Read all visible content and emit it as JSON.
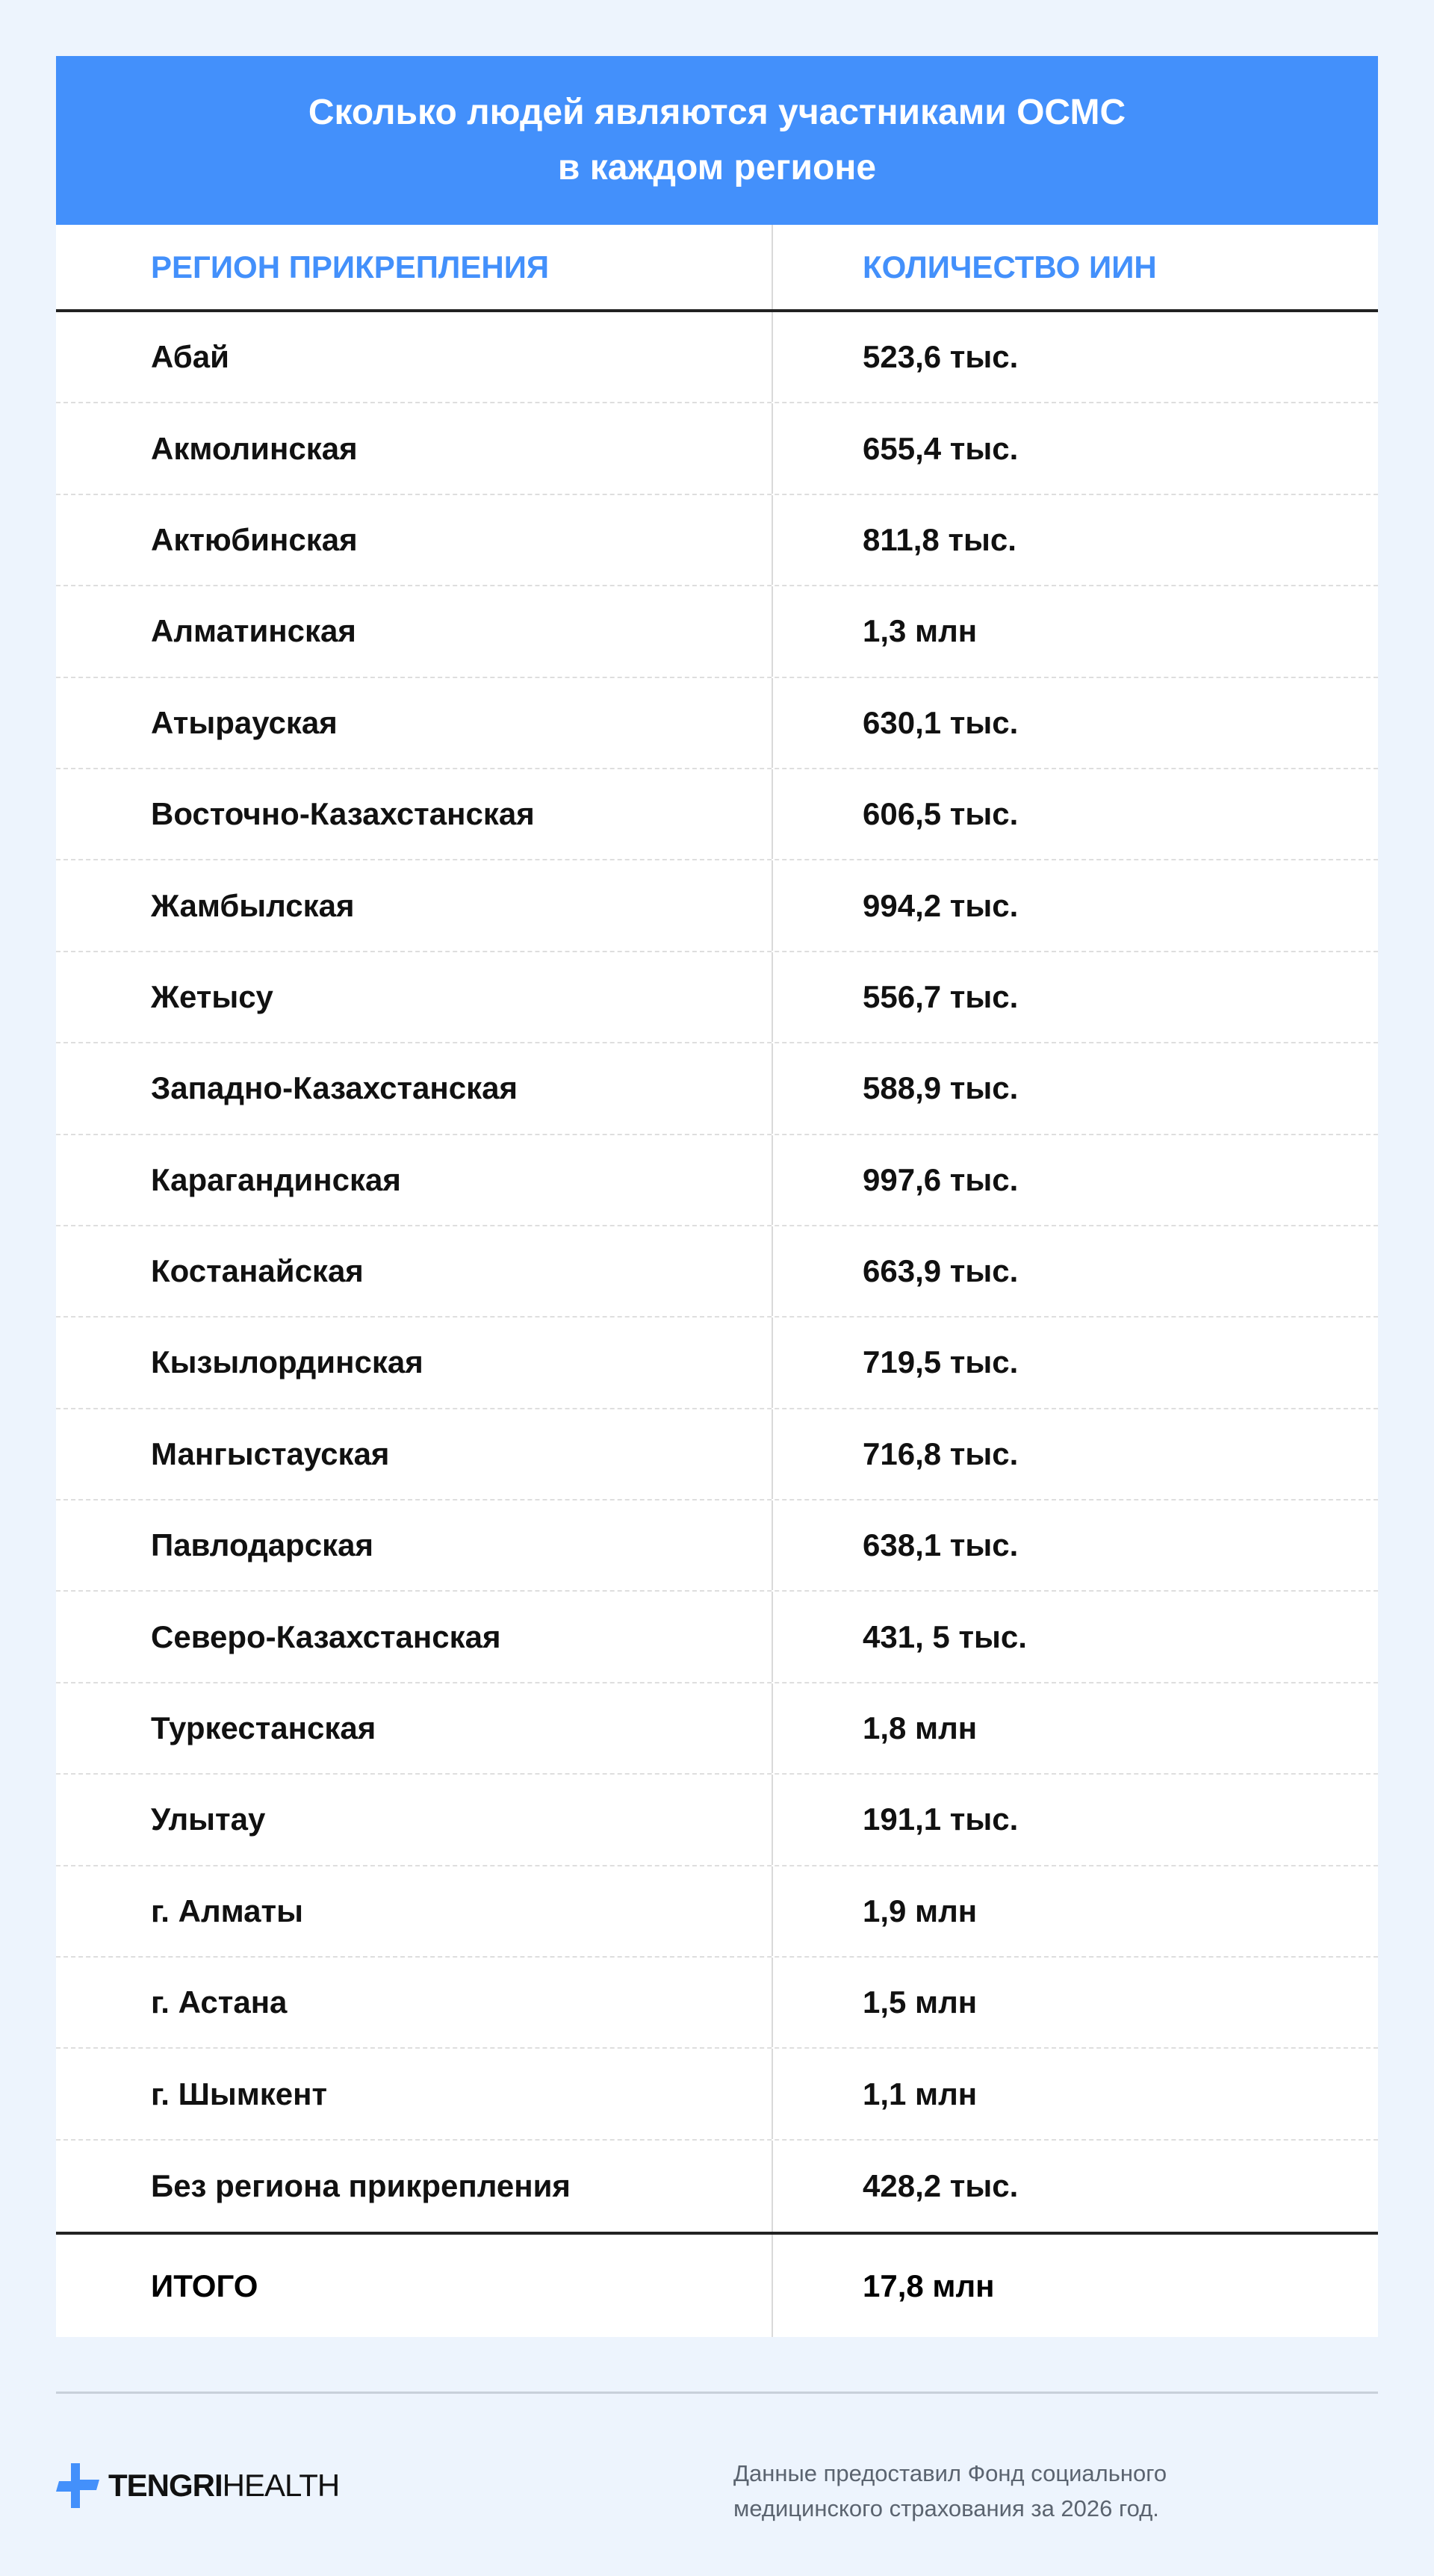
{
  "title": {
    "line1": "Сколько людей являются участниками ОСМС",
    "line2": "в каждом регионе"
  },
  "table": {
    "headers": [
      "РЕГИОН ПРИКРЕПЛЕНИЯ",
      "КОЛИЧЕСТВО ИИН"
    ],
    "rows": [
      [
        "Абай",
        "523,6 тыс."
      ],
      [
        "Акмолинская",
        "655,4 тыс."
      ],
      [
        "Актюбинская",
        "811,8 тыс."
      ],
      [
        "Алматинская",
        "1,3 млн"
      ],
      [
        "Атырауская",
        "630,1 тыс."
      ],
      [
        "Восточно-Казахстанская",
        "606,5 тыс."
      ],
      [
        "Жамбылская",
        "994,2 тыс."
      ],
      [
        "Жетысу",
        "556,7 тыс."
      ],
      [
        "Западно-Казахстанская",
        "588,9 тыс."
      ],
      [
        "Карагандинская",
        "997,6 тыс."
      ],
      [
        "Костанайская",
        "663,9 тыс."
      ],
      [
        "Кызылординская",
        "719,5 тыс."
      ],
      [
        "Мангыстауская",
        "716,8 тыс."
      ],
      [
        "Павлодарская",
        "638,1 тыс."
      ],
      [
        "Северо-Казахстанская",
        "431, 5 тыс."
      ],
      [
        "Туркестанская",
        "1,8 млн"
      ],
      [
        "Улытау",
        "191,1 тыс."
      ],
      [
        "г. Алматы",
        "1,9 млн"
      ],
      [
        "г. Астана",
        "1,5 млн"
      ],
      [
        "г. Шымкент",
        "1,1 млн"
      ],
      [
        "Без региона прикрепления",
        "428,2 тыс."
      ]
    ],
    "total": [
      "ИТОГО",
      "17,8 млн"
    ]
  },
  "footer": {
    "logo": {
      "bold": "TENGRI",
      "light": "HEALTH",
      "icon": "medical-cross-icon"
    },
    "note_line1": "Данные предоставил Фонд социального",
    "note_line2": "медицинского страхования за 2026 год."
  },
  "colors": {
    "accent": "#4390fb",
    "background": "#edf4fd"
  }
}
